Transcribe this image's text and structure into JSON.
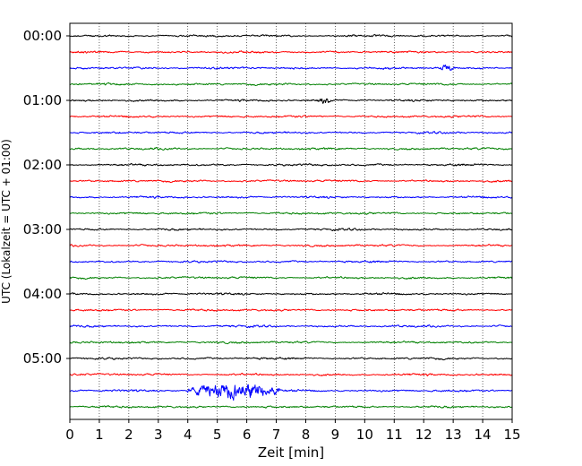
{
  "chart_data": {
    "type": "line",
    "title": "",
    "xlabel": "Zeit  [min]",
    "ylabel": "UTC (Lokalzeit = UTC + 01:00)",
    "xlim": [
      0,
      15
    ],
    "x_ticks": [
      "0",
      "1",
      "2",
      "3",
      "4",
      "5",
      "6",
      "7",
      "8",
      "9",
      "10",
      "11",
      "12",
      "13",
      "14",
      "15"
    ],
    "x_gridlines": "dotted vertical at every minute",
    "y_tick_labels": [
      "00:00",
      "01:00",
      "02:00",
      "03:00",
      "04:00",
      "05:00"
    ],
    "trace_interval_minutes": 15,
    "trace_count": 24,
    "trace_color_cycle": [
      "#000000",
      "#ff0000",
      "#0000ff",
      "#008000"
    ],
    "trace_start_times_utc": [
      "00:00",
      "00:15",
      "00:30",
      "00:45",
      "01:00",
      "01:15",
      "01:30",
      "01:45",
      "02:00",
      "02:15",
      "02:30",
      "02:45",
      "03:00",
      "03:15",
      "03:30",
      "03:45",
      "04:00",
      "04:15",
      "04:30",
      "04:45",
      "05:00",
      "05:15",
      "05:30",
      "05:45"
    ],
    "events": [
      {
        "trace_start": "05:30",
        "x_start_min": 3.9,
        "x_end_min": 7.1,
        "peak_min": 5.6,
        "peak_relative_amplitude": 4.5
      },
      {
        "trace_start": "01:00",
        "x_start_min": 8.4,
        "x_end_min": 8.9,
        "peak_min": 8.6,
        "peak_relative_amplitude": 1.4
      },
      {
        "trace_start": "00:30",
        "x_start_min": 12.5,
        "x_end_min": 13.1,
        "peak_min": 12.8,
        "peak_relative_amplitude": 1.4
      }
    ]
  }
}
